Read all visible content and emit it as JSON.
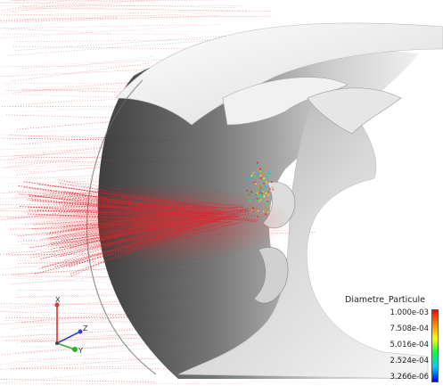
{
  "legend": {
    "title": "Diametre_Particule",
    "labels": [
      "1.000e-03",
      "7.508e-04",
      "5.016e-04",
      "2.524e-04",
      "3.266e-06"
    ],
    "colormap": [
      "#ff0000",
      "#ff8800",
      "#ffff00",
      "#00ff44",
      "#00ccff",
      "#0000ff"
    ]
  },
  "axes": {
    "x_label": "X",
    "y_label": "Y",
    "z_label": "Z",
    "x_color": "#e03030",
    "y_color": "#30b030",
    "z_color": "#3040e0"
  },
  "colors": {
    "streamline_main": "#e8202a",
    "surface_light": "#f4f4f4",
    "surface_dark": "#4a4a4a"
  }
}
